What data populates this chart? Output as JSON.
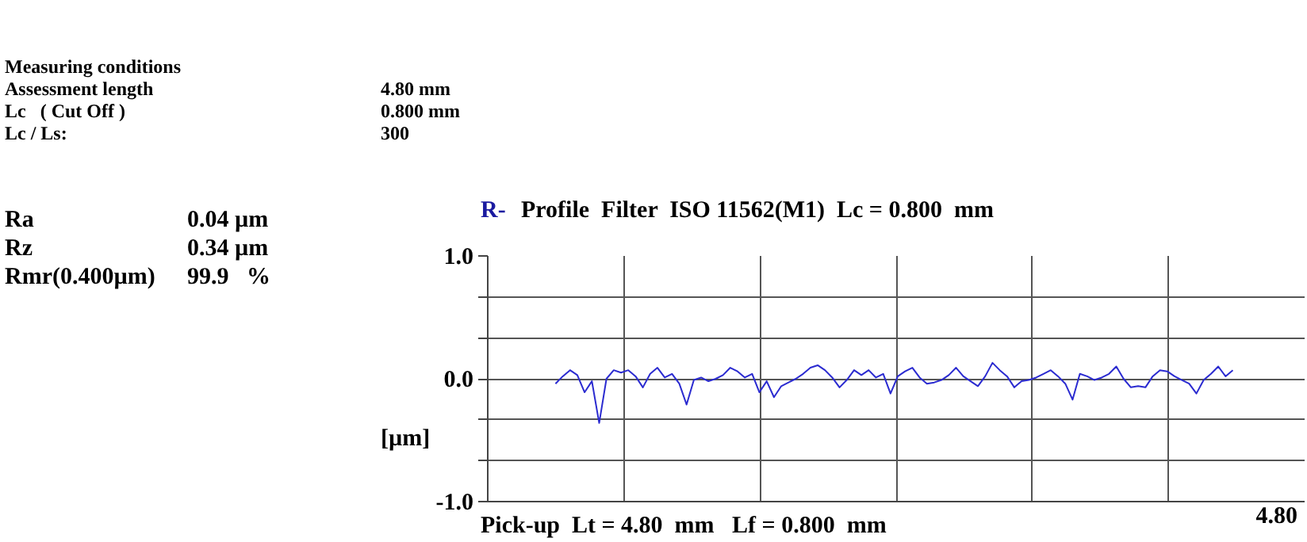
{
  "chart_data": {
    "type": "line",
    "title": "R-  Profile  Filter  ISO 11562(M1)  Lc = 0.800  mm",
    "xlabel": "Pick-up  Lt = 4.80  mm   Lf = 0.800  mm",
    "ylabel": "[µm]",
    "annotations": [
      "Measuring conditions",
      "Assessment length",
      "4.80 mm",
      "Lc   ( Cut Off )",
      "0.800 mm",
      "Lc / Ls:",
      "300",
      "Ra",
      "0.04 µm",
      "Rz",
      "0.34 µm",
      "Rmr(0.400µm)",
      "99.9   %",
      "4.80"
    ],
    "categories": [
      null,
      null,
      null,
      null,
      null,
      null,
      null,
      null,
      null,
      null,
      null,
      null,
      null,
      null,
      null,
      null,
      null,
      null,
      null,
      null,
      null,
      null,
      null,
      null,
      null,
      null,
      null,
      null,
      null,
      null,
      null,
      null,
      null,
      null,
      null,
      null,
      null,
      null,
      null,
      null,
      null,
      null,
      null,
      null,
      null,
      null,
      null,
      null,
      null,
      null,
      null,
      null,
      null,
      null,
      null,
      null,
      null,
      null,
      null,
      null,
      null,
      null,
      null,
      null,
      null,
      null,
      null,
      null,
      null,
      null,
      null,
      null,
      null,
      null,
      null,
      null,
      null,
      null,
      null,
      null,
      null,
      null,
      null,
      null,
      null,
      null,
      null,
      null,
      null,
      null,
      null,
      null,
      null,
      null
    ],
    "ylim": [
      -1,
      1
    ],
    "yticks": [
      {
        "value": -1,
        "label": "-1.0"
      },
      {
        "value": -0.667,
        "label": null
      },
      {
        "value": -0.333,
        "label": null
      },
      {
        "value": 0,
        "label": "0.0"
      },
      {
        "value": 0.333,
        "label": null
      },
      {
        "value": 0.667,
        "label": null
      },
      {
        "value": 1,
        "label": "1.0"
      }
    ],
    "grid": true,
    "line_style": "solid",
    "series": [
      {
        "color": "#2b2bd0",
        "values": [
          -0.04,
          0.02,
          0.07,
          0.03,
          -0.11,
          -0.02,
          -0.36,
          0.0,
          0.07,
          0.05,
          0.07,
          0.02,
          -0.07,
          0.04,
          0.09,
          0.01,
          0.04,
          -0.04,
          -0.21,
          -0.01,
          0.01,
          -0.02,
          0.0,
          0.03,
          0.09,
          0.06,
          0.01,
          0.04,
          -0.11,
          -0.02,
          -0.15,
          -0.06,
          -0.03,
          0.0,
          0.04,
          0.09,
          0.11,
          0.07,
          0.01,
          -0.07,
          -0.01,
          0.07,
          0.03,
          0.07,
          0.01,
          0.04,
          -0.12,
          0.02,
          0.06,
          0.09,
          0.01,
          -0.04,
          -0.03,
          -0.01,
          0.03,
          0.09,
          0.02,
          -0.02,
          -0.06,
          0.02,
          0.13,
          0.07,
          0.02,
          -0.07,
          -0.02,
          -0.01,
          0.01,
          0.04,
          0.07,
          0.02,
          -0.04,
          -0.17,
          0.04,
          0.02,
          -0.01,
          0.01,
          0.04,
          0.1,
          0.0,
          -0.07,
          -0.06,
          -0.07,
          0.02,
          0.07,
          0.06,
          0.02,
          -0.01,
          -0.04,
          -0.12,
          -0.01,
          0.04,
          0.1,
          0.02,
          0.07
        ]
      }
    ]
  }
}
